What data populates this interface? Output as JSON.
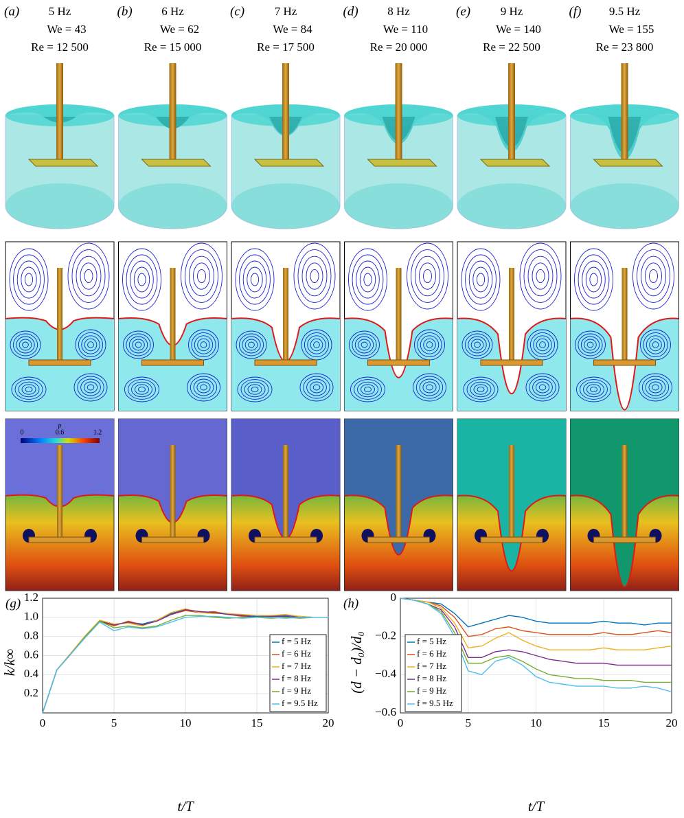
{
  "panels": [
    {
      "label": "(a)",
      "freq": "5 Hz",
      "we": "We = 43",
      "re": "Re = 12 500"
    },
    {
      "label": "(b)",
      "freq": "6 Hz",
      "we": "We = 62",
      "re": "Re = 15 000"
    },
    {
      "label": "(c)",
      "freq": "7 Hz",
      "we": "We = 84",
      "re": "Re = 17 500"
    },
    {
      "label": "(d)",
      "freq": "8 Hz",
      "we": "We = 110",
      "re": "Re = 20 000"
    },
    {
      "label": "(e)",
      "freq": "9 Hz",
      "we": "We = 140",
      "re": "Re = 22 500"
    },
    {
      "label": "(f)",
      "freq": "9.5 Hz",
      "we": "We = 155",
      "re": "Re = 23 800"
    }
  ],
  "colorbar": {
    "label": "p",
    "ticks": [
      "0",
      "0.6",
      "1.2"
    ]
  },
  "chart_data": [
    {
      "type": "line",
      "label": "(g)",
      "x_label": "t/T",
      "y_label": "k/k∞",
      "x": [
        0,
        1,
        2,
        3,
        4,
        5,
        6,
        7,
        8,
        9,
        10,
        11,
        12,
        13,
        14,
        15,
        16,
        17,
        18,
        19,
        20
      ],
      "xlim": [
        0,
        20
      ],
      "xticks": [
        0,
        5,
        10,
        15,
        20
      ],
      "ylim": [
        0,
        1.2
      ],
      "yticks": [
        0.2,
        0.4,
        0.6,
        0.8,
        {
          "value": 1,
          "label": "1.0"
        },
        1.2
      ],
      "grid": true,
      "legend": "lower right",
      "series": [
        {
          "name": "f = 5 Hz",
          "color": "#0072bd",
          "values": [
            0,
            0.45,
            0.62,
            0.8,
            0.96,
            0.92,
            0.95,
            0.93,
            0.97,
            1.04,
            1.08,
            1.06,
            1.05,
            1.04,
            1.02,
            1.01,
            1.02,
            1.02,
            1.01,
            1.0,
            1.0
          ]
        },
        {
          "name": "f = 6 Hz",
          "color": "#d95319",
          "values": [
            0,
            0.45,
            0.62,
            0.8,
            0.96,
            0.91,
            0.96,
            0.92,
            0.96,
            1.03,
            1.07,
            1.05,
            1.06,
            1.03,
            1.01,
            1.0,
            1.01,
            1.01,
            1.0,
            1.0,
            1.0
          ]
        },
        {
          "name": "f = 7 Hz",
          "color": "#edb120",
          "values": [
            0,
            0.45,
            0.63,
            0.81,
            0.97,
            0.93,
            0.94,
            0.91,
            0.97,
            1.05,
            1.09,
            1.05,
            1.04,
            1.04,
            1.03,
            1.02,
            1.02,
            1.03,
            1.01,
            1.0,
            1.0
          ]
        },
        {
          "name": "f = 8 Hz",
          "color": "#7e2f8e",
          "values": [
            0,
            0.45,
            0.62,
            0.8,
            0.96,
            0.92,
            0.95,
            0.92,
            0.96,
            1.03,
            1.08,
            1.06,
            1.05,
            1.03,
            1.02,
            1.0,
            1.01,
            1.01,
            1.0,
            1.0,
            1.0
          ]
        },
        {
          "name": "f = 9 Hz",
          "color": "#77ac30",
          "values": [
            0,
            0.45,
            0.62,
            0.8,
            0.96,
            0.89,
            0.91,
            0.89,
            0.91,
            0.97,
            1.02,
            1.02,
            1.0,
            0.99,
            1.0,
            1.0,
            0.99,
            1.0,
            0.99,
            1.0,
            1.0
          ]
        },
        {
          "name": "f = 9.5 Hz",
          "color": "#4dbeee",
          "values": [
            0,
            0.45,
            0.62,
            0.79,
            0.95,
            0.86,
            0.9,
            0.88,
            0.9,
            0.95,
            1.0,
            1.01,
            1.01,
            1.0,
            0.99,
            1.0,
            1.0,
            0.99,
            1.0,
            1.0,
            1.0
          ]
        }
      ]
    },
    {
      "type": "line",
      "label": "(h)",
      "x_label": "t/T",
      "y_label": "(d − d₀)/d₀",
      "x": [
        0,
        1,
        2,
        3,
        4,
        5,
        6,
        7,
        8,
        9,
        10,
        11,
        12,
        13,
        14,
        15,
        16,
        17,
        18,
        19,
        20
      ],
      "xlim": [
        0,
        20
      ],
      "xticks": [
        0,
        5,
        10,
        15,
        20
      ],
      "ylim": [
        -0.6,
        0
      ],
      "yticks": [
        {
          "value": -0.6,
          "label": "−0.6"
        },
        {
          "value": -0.4,
          "label": "−0.4"
        },
        {
          "value": -0.2,
          "label": "−0.2"
        },
        0
      ],
      "grid": true,
      "legend": "lower left",
      "series": [
        {
          "name": "f = 5 Hz",
          "color": "#0072bd",
          "values": [
            0,
            -0.01,
            -0.02,
            -0.03,
            -0.08,
            -0.15,
            -0.13,
            -0.11,
            -0.09,
            -0.1,
            -0.12,
            -0.13,
            -0.13,
            -0.13,
            -0.13,
            -0.12,
            -0.13,
            -0.13,
            -0.14,
            -0.13,
            -0.13
          ]
        },
        {
          "name": "f = 6 Hz",
          "color": "#d95319",
          "values": [
            0,
            -0.01,
            -0.02,
            -0.04,
            -0.1,
            -0.2,
            -0.19,
            -0.16,
            -0.15,
            -0.17,
            -0.18,
            -0.19,
            -0.19,
            -0.19,
            -0.19,
            -0.18,
            -0.19,
            -0.19,
            -0.18,
            -0.17,
            -0.18
          ]
        },
        {
          "name": "f = 7 Hz",
          "color": "#edb120",
          "values": [
            0,
            -0.01,
            -0.02,
            -0.05,
            -0.13,
            -0.26,
            -0.25,
            -0.21,
            -0.18,
            -0.22,
            -0.25,
            -0.27,
            -0.27,
            -0.27,
            -0.27,
            -0.26,
            -0.27,
            -0.27,
            -0.27,
            -0.26,
            -0.25
          ]
        },
        {
          "name": "f = 8 Hz",
          "color": "#7e2f8e",
          "values": [
            0,
            -0.01,
            -0.03,
            -0.06,
            -0.15,
            -0.31,
            -0.31,
            -0.28,
            -0.27,
            -0.28,
            -0.3,
            -0.32,
            -0.33,
            -0.34,
            -0.34,
            -0.34,
            -0.35,
            -0.35,
            -0.35,
            -0.35,
            -0.35
          ]
        },
        {
          "name": "f = 9 Hz",
          "color": "#77ac30",
          "values": [
            0,
            -0.01,
            -0.03,
            -0.07,
            -0.18,
            -0.34,
            -0.34,
            -0.31,
            -0.3,
            -0.33,
            -0.37,
            -0.4,
            -0.41,
            -0.42,
            -0.42,
            -0.43,
            -0.43,
            -0.43,
            -0.44,
            -0.44,
            -0.44
          ]
        },
        {
          "name": "f = 9.5 Hz",
          "color": "#4dbeee",
          "values": [
            0,
            -0.01,
            -0.03,
            -0.08,
            -0.2,
            -0.38,
            -0.4,
            -0.33,
            -0.31,
            -0.35,
            -0.41,
            -0.44,
            -0.45,
            -0.46,
            -0.46,
            -0.46,
            -0.47,
            -0.47,
            -0.46,
            -0.47,
            -0.49
          ]
        }
      ]
    }
  ]
}
